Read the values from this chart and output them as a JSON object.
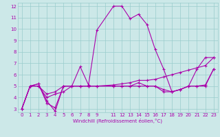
{
  "xlabel": "Windchill (Refroidissement éolien,°C)",
  "bg_color": "#cce8e8",
  "line_color": "#aa00aa",
  "grid_color": "#99cccc",
  "xlim": [
    -0.5,
    23.5
  ],
  "ylim": [
    2.7,
    12.3
  ],
  "yticks": [
    3,
    4,
    5,
    6,
    7,
    8,
    9,
    10,
    11,
    12
  ],
  "lines": [
    {
      "x": [
        0,
        1,
        2,
        3,
        4,
        5,
        6,
        7,
        8,
        9,
        11,
        12,
        13,
        14,
        15,
        16,
        17,
        18,
        19,
        20,
        21,
        22,
        23
      ],
      "y": [
        3.0,
        5.0,
        5.2,
        3.7,
        2.8,
        5.0,
        5.0,
        6.7,
        5.1,
        9.9,
        12.0,
        12.0,
        10.9,
        11.3,
        10.4,
        8.2,
        6.5,
        4.5,
        4.7,
        5.0,
        6.5,
        7.5,
        7.5
      ]
    },
    {
      "x": [
        0,
        1,
        2,
        3,
        4,
        5,
        6,
        7,
        8,
        9,
        11,
        12,
        13,
        14,
        15,
        16,
        17,
        18,
        19,
        20,
        21,
        22,
        23
      ],
      "y": [
        3.0,
        5.0,
        5.2,
        3.5,
        3.1,
        5.0,
        5.0,
        5.0,
        5.0,
        5.0,
        5.0,
        5.0,
        5.0,
        5.0,
        5.0,
        5.0,
        4.5,
        4.5,
        4.7,
        5.0,
        5.0,
        5.0,
        6.5
      ]
    },
    {
      "x": [
        0,
        1,
        2,
        3,
        4,
        5,
        6,
        7,
        8,
        9,
        11,
        12,
        13,
        14,
        15,
        16,
        17,
        18,
        19,
        20,
        21,
        22,
        23
      ],
      "y": [
        3.0,
        5.0,
        5.0,
        4.3,
        4.5,
        5.0,
        5.0,
        5.0,
        5.0,
        5.0,
        5.0,
        5.0,
        5.0,
        5.3,
        5.0,
        5.0,
        4.7,
        4.5,
        4.7,
        5.0,
        5.0,
        5.1,
        6.5
      ]
    },
    {
      "x": [
        0,
        1,
        2,
        3,
        4,
        5,
        6,
        7,
        8,
        9,
        11,
        12,
        13,
        14,
        15,
        16,
        17,
        18,
        19,
        20,
        21,
        22,
        23
      ],
      "y": [
        3.0,
        5.0,
        5.0,
        4.0,
        4.3,
        4.5,
        5.0,
        5.0,
        5.0,
        5.0,
        5.1,
        5.2,
        5.3,
        5.5,
        5.5,
        5.6,
        5.8,
        6.0,
        6.2,
        6.4,
        6.6,
        6.8,
        7.5
      ]
    }
  ]
}
